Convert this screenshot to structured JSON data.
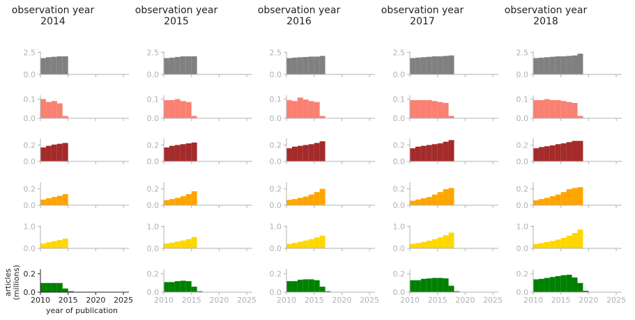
{
  "figure": {
    "column_title_prefix": "observation year",
    "observation_years": [
      "2014",
      "2015",
      "2016",
      "2017",
      "2018"
    ],
    "xlabel": "year of publication",
    "ylabel_line1": "articles",
    "ylabel_line2": "(millions)"
  },
  "chart_data": {
    "type": "bar",
    "layout": "small multiples grid: 6 rows (series) x 5 columns (observation years)",
    "x_range": [
      2010,
      2026
    ],
    "x_ticks": [
      "2010",
      "2015",
      "2020",
      "2025"
    ],
    "bar_x_start": 2010,
    "bar_width_years": 1,
    "rows": [
      {
        "color": "#808080",
        "ylim": [
          0,
          2.6
        ],
        "y_ticks": [
          "0.0",
          "2.5"
        ],
        "y_tick_values": [
          0,
          2.5
        ]
      },
      {
        "color": "#fa8072",
        "ylim": [
          0,
          0.12
        ],
        "y_ticks": [
          "0.0",
          "0.1"
        ],
        "y_tick_values": [
          0,
          0.1
        ]
      },
      {
        "color": "#a52a2a",
        "ylim": [
          0,
          0.28
        ],
        "y_ticks": [
          "0.0",
          "0.2"
        ],
        "y_tick_values": [
          0,
          0.2
        ]
      },
      {
        "color": "#ffa500",
        "ylim": [
          0,
          0.28
        ],
        "y_ticks": [
          "0.0",
          "0.2"
        ],
        "y_tick_values": [
          0,
          0.2
        ]
      },
      {
        "color": "#ffd700",
        "ylim": [
          0,
          1.05
        ],
        "y_ticks": [
          "0.0",
          "1.0"
        ],
        "y_tick_values": [
          0,
          1.0
        ]
      },
      {
        "color": "#008000",
        "ylim": [
          0,
          0.25
        ],
        "y_ticks": [
          "0.0",
          "0.2"
        ],
        "y_tick_values": [
          0,
          0.2
        ]
      }
    ],
    "values": [
      [
        [
          1.85,
          1.95,
          2.0,
          2.05,
          2.05
        ],
        [
          0.1,
          0.085,
          0.09,
          0.078,
          0.012
        ],
        [
          0.17,
          0.19,
          0.205,
          0.215,
          0.225
        ],
        [
          0.068,
          0.085,
          0.1,
          0.115,
          0.135
        ],
        [
          0.22,
          0.28,
          0.33,
          0.38,
          0.44
        ],
        [
          0.1,
          0.1,
          0.1,
          0.1,
          0.04,
          0.01,
          0.003,
          0.002,
          0.002,
          0.002,
          0.002,
          0.002,
          0.002,
          0.002,
          0.002,
          0.002
        ]
      ],
      [
        [
          1.85,
          1.9,
          1.98,
          2.05,
          2.05,
          2.05
        ],
        [
          0.095,
          0.095,
          0.1,
          0.09,
          0.085,
          0.012
        ],
        [
          0.17,
          0.19,
          0.2,
          0.21,
          0.22,
          0.23
        ],
        [
          0.062,
          0.075,
          0.09,
          0.11,
          0.135,
          0.17
        ],
        [
          0.22,
          0.26,
          0.31,
          0.36,
          0.42,
          0.52
        ],
        [
          0.11,
          0.11,
          0.12,
          0.125,
          0.12,
          0.06,
          0.01
        ]
      ],
      [
        [
          1.85,
          1.9,
          1.95,
          1.98,
          2.02,
          2.02,
          2.1
        ],
        [
          0.095,
          0.09,
          0.108,
          0.098,
          0.09,
          0.085,
          0.012
        ],
        [
          0.16,
          0.18,
          0.19,
          0.2,
          0.21,
          0.225,
          0.245
        ],
        [
          0.065,
          0.075,
          0.09,
          0.105,
          0.13,
          0.16,
          0.2
        ],
        [
          0.2,
          0.25,
          0.3,
          0.36,
          0.42,
          0.5,
          0.58
        ],
        [
          0.12,
          0.12,
          0.135,
          0.14,
          0.14,
          0.13,
          0.06,
          0.01
        ]
      ],
      [
        [
          1.85,
          1.9,
          1.95,
          2.0,
          2.05,
          2.05,
          2.1,
          2.15
        ],
        [
          0.095,
          0.095,
          0.095,
          0.095,
          0.09,
          0.085,
          0.08,
          0.012
        ],
        [
          0.16,
          0.18,
          0.19,
          0.2,
          0.21,
          0.22,
          0.24,
          0.26
        ],
        [
          0.055,
          0.07,
          0.085,
          0.1,
          0.13,
          0.16,
          0.195,
          0.21
        ],
        [
          0.2,
          0.24,
          0.29,
          0.35,
          0.42,
          0.5,
          0.6,
          0.72
        ],
        [
          0.13,
          0.13,
          0.145,
          0.15,
          0.155,
          0.155,
          0.15,
          0.07,
          0.01
        ]
      ],
      [
        [
          1.85,
          1.9,
          1.95,
          2.0,
          2.05,
          2.05,
          2.1,
          2.15,
          2.35
        ],
        [
          0.095,
          0.095,
          0.1,
          0.095,
          0.095,
          0.09,
          0.085,
          0.08,
          0.012
        ],
        [
          0.16,
          0.175,
          0.185,
          0.195,
          0.21,
          0.22,
          0.235,
          0.25,
          0.25
        ],
        [
          0.06,
          0.075,
          0.09,
          0.11,
          0.13,
          0.16,
          0.195,
          0.21,
          0.22
        ],
        [
          0.2,
          0.24,
          0.29,
          0.34,
          0.4,
          0.48,
          0.58,
          0.7,
          0.86
        ],
        [
          0.14,
          0.145,
          0.155,
          0.165,
          0.175,
          0.185,
          0.19,
          0.16,
          0.1,
          0.015
        ]
      ]
    ]
  }
}
